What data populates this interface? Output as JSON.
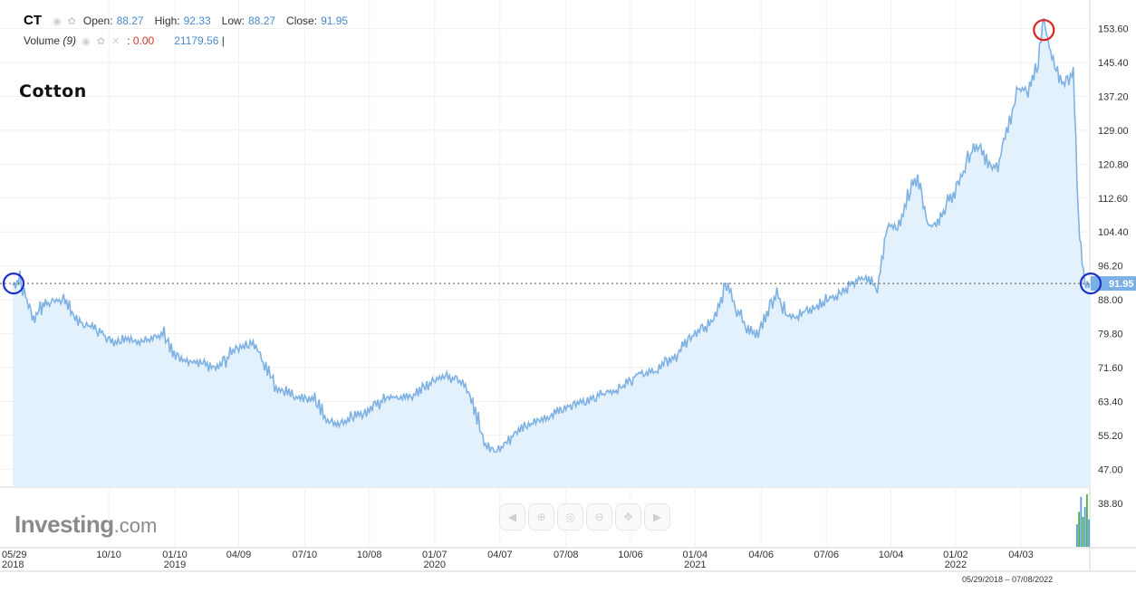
{
  "legend": {
    "symbol": "CT",
    "open_label": "Open:",
    "open": "88.27",
    "high_label": "High:",
    "high": "92.33",
    "low_label": "Low:",
    "low": "88.27",
    "close_label": "Close:",
    "close": "91.95",
    "volume_label": "Volume",
    "volume_period": "(9)",
    "volume_change": "0.00",
    "volume_value": "21179.56"
  },
  "logo": {
    "main": "Investing",
    "suffix": ".com"
  },
  "range_label": "05/29/2018 – 07/08/2022",
  "colors": {
    "line": "#7fb2e2",
    "area": "#e3f1fd",
    "price_tag": "#79b1e6",
    "circle_low": "#1f2fcc",
    "circle_high": "#dd2222"
  },
  "chart_data": {
    "type": "area",
    "title": "Cotton",
    "symbol": "CT",
    "current_price": 91.95,
    "current_price_label": "91.95",
    "ylim": [
      42.7,
      159.2
    ],
    "y_ticks": [
      "153.60",
      "145.40",
      "137.20",
      "129.00",
      "120.80",
      "112.60",
      "104.40",
      "96.20",
      "88.00",
      "79.80",
      "71.60",
      "63.40",
      "55.20",
      "47.00",
      "38.80"
    ],
    "x_ticks": [
      {
        "label": "05/29",
        "year": "2018",
        "date": "2018-05-29"
      },
      {
        "label": "10/10",
        "year": "",
        "date": "2018-10-10"
      },
      {
        "label": "01/10",
        "year": "2019",
        "date": "2019-01-10"
      },
      {
        "label": "04/09",
        "year": "",
        "date": "2019-04-09"
      },
      {
        "label": "07/10",
        "year": "",
        "date": "2019-07-10"
      },
      {
        "label": "10/08",
        "year": "",
        "date": "2019-10-08"
      },
      {
        "label": "01/07",
        "year": "2020",
        "date": "2020-01-07"
      },
      {
        "label": "04/07",
        "year": "",
        "date": "2020-04-07"
      },
      {
        "label": "07/08",
        "year": "",
        "date": "2020-07-08"
      },
      {
        "label": "10/06",
        "year": "",
        "date": "2020-10-06"
      },
      {
        "label": "01/04",
        "year": "2021",
        "date": "2021-01-04"
      },
      {
        "label": "04/06",
        "year": "",
        "date": "2021-04-06"
      },
      {
        "label": "07/06",
        "year": "",
        "date": "2021-07-06"
      },
      {
        "label": "10/04",
        "year": "",
        "date": "2021-10-04"
      },
      {
        "label": "01/02",
        "year": "2022",
        "date": "2022-01-02"
      },
      {
        "label": "04/03",
        "year": "",
        "date": "2022-04-03"
      }
    ],
    "series": [
      {
        "points": [
          [
            "2018-05-29",
            91.5
          ],
          [
            "2018-06-08",
            93.0
          ],
          [
            "2018-06-18",
            88.0
          ],
          [
            "2018-06-27",
            83.0
          ],
          [
            "2018-07-10",
            87.0
          ],
          [
            "2018-07-25",
            87.5
          ],
          [
            "2018-08-08",
            88.0
          ],
          [
            "2018-08-22",
            84.0
          ],
          [
            "2018-09-05",
            82.0
          ],
          [
            "2018-09-19",
            81.5
          ],
          [
            "2018-10-03",
            79.5
          ],
          [
            "2018-10-17",
            77.0
          ],
          [
            "2018-10-31",
            78.5
          ],
          [
            "2018-11-14",
            78.0
          ],
          [
            "2018-11-28",
            78.0
          ],
          [
            "2018-12-12",
            79.0
          ],
          [
            "2018-12-26",
            79.5
          ],
          [
            "2019-01-09",
            75.0
          ],
          [
            "2019-01-23",
            73.0
          ],
          [
            "2019-02-06",
            73.0
          ],
          [
            "2019-02-20",
            72.5
          ],
          [
            "2019-03-06",
            71.0
          ],
          [
            "2019-03-20",
            73.0
          ],
          [
            "2019-04-03",
            76.0
          ],
          [
            "2019-04-17",
            77.0
          ],
          [
            "2019-05-01",
            77.5
          ],
          [
            "2019-05-15",
            72.0
          ],
          [
            "2019-05-29",
            67.0
          ],
          [
            "2019-06-12",
            66.0
          ],
          [
            "2019-06-26",
            64.5
          ],
          [
            "2019-07-10",
            64.0
          ],
          [
            "2019-07-24",
            64.0
          ],
          [
            "2019-08-07",
            59.5
          ],
          [
            "2019-08-21",
            58.0
          ],
          [
            "2019-09-04",
            58.5
          ],
          [
            "2019-09-18",
            60.5
          ],
          [
            "2019-10-02",
            60.0
          ],
          [
            "2019-10-16",
            62.0
          ],
          [
            "2019-10-30",
            64.0
          ],
          [
            "2019-11-13",
            64.5
          ],
          [
            "2019-11-27",
            64.5
          ],
          [
            "2019-12-11",
            65.0
          ],
          [
            "2019-12-25",
            67.0
          ],
          [
            "2020-01-08",
            69.0
          ],
          [
            "2020-01-22",
            70.0
          ],
          [
            "2020-02-05",
            68.5
          ],
          [
            "2020-02-19",
            67.0
          ],
          [
            "2020-03-04",
            61.0
          ],
          [
            "2020-03-18",
            53.0
          ],
          [
            "2020-04-01",
            51.0
          ],
          [
            "2020-04-15",
            53.0
          ],
          [
            "2020-04-29",
            56.0
          ],
          [
            "2020-05-13",
            57.5
          ],
          [
            "2020-05-27",
            58.5
          ],
          [
            "2020-06-10",
            59.5
          ],
          [
            "2020-06-24",
            60.5
          ],
          [
            "2020-07-08",
            62.0
          ],
          [
            "2020-07-22",
            63.0
          ],
          [
            "2020-08-05",
            63.5
          ],
          [
            "2020-08-19",
            64.5
          ],
          [
            "2020-09-02",
            65.5
          ],
          [
            "2020-09-16",
            66.0
          ],
          [
            "2020-09-30",
            67.5
          ],
          [
            "2020-10-14",
            70.0
          ],
          [
            "2020-10-28",
            70.5
          ],
          [
            "2020-11-11",
            70.5
          ],
          [
            "2020-11-25",
            73.0
          ],
          [
            "2020-12-09",
            74.5
          ],
          [
            "2020-12-23",
            77.5
          ],
          [
            "2021-01-06",
            80.0
          ],
          [
            "2021-01-20",
            81.5
          ],
          [
            "2021-02-03",
            85.0
          ],
          [
            "2021-02-17",
            92.0
          ],
          [
            "2021-03-03",
            86.0
          ],
          [
            "2021-03-17",
            81.0
          ],
          [
            "2021-03-31",
            79.5
          ],
          [
            "2021-04-14",
            85.0
          ],
          [
            "2021-04-28",
            89.5
          ],
          [
            "2021-05-12",
            84.0
          ],
          [
            "2021-05-26",
            84.0
          ],
          [
            "2021-06-09",
            85.5
          ],
          [
            "2021-06-23",
            86.0
          ],
          [
            "2021-07-07",
            88.5
          ],
          [
            "2021-07-21",
            89.0
          ],
          [
            "2021-08-04",
            91.0
          ],
          [
            "2021-08-18",
            93.0
          ],
          [
            "2021-09-01",
            93.0
          ],
          [
            "2021-09-15",
            91.0
          ],
          [
            "2021-09-29",
            106.0
          ],
          [
            "2021-10-13",
            105.0
          ],
          [
            "2021-10-27",
            113.0
          ],
          [
            "2021-11-10",
            118.0
          ],
          [
            "2021-11-24",
            106.0
          ],
          [
            "2021-12-08",
            106.0
          ],
          [
            "2021-12-22",
            112.0
          ],
          [
            "2022-01-05",
            115.0
          ],
          [
            "2022-01-19",
            122.0
          ],
          [
            "2022-02-02",
            126.0
          ],
          [
            "2022-02-16",
            121.0
          ],
          [
            "2022-03-02",
            120.0
          ],
          [
            "2022-03-16",
            130.0
          ],
          [
            "2022-03-30",
            139.0
          ],
          [
            "2022-04-13",
            139.0
          ],
          [
            "2022-04-27",
            146.0
          ],
          [
            "2022-05-05",
            155.0
          ],
          [
            "2022-05-18",
            145.0
          ],
          [
            "2022-06-01",
            140.0
          ],
          [
            "2022-06-15",
            143.0
          ],
          [
            "2022-06-22",
            108.0
          ],
          [
            "2022-07-01",
            91.0
          ],
          [
            "2022-07-08",
            91.95
          ]
        ]
      }
    ],
    "volume_recent": [
      9000,
      14000,
      20000,
      12000,
      16000,
      21000,
      11000
    ]
  }
}
